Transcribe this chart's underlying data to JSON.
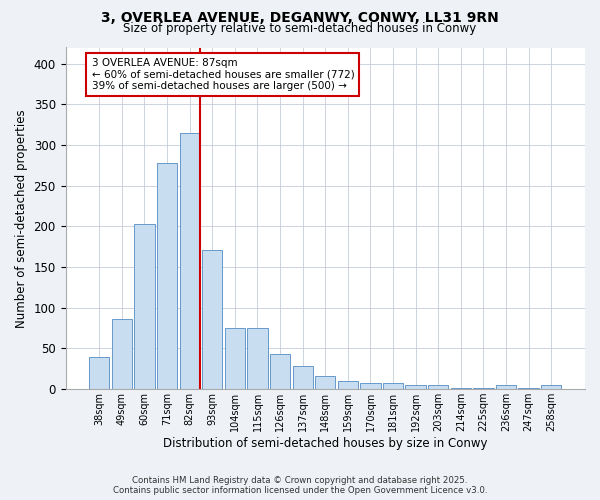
{
  "title_line1": "3, OVERLEA AVENUE, DEGANWY, CONWY, LL31 9RN",
  "title_line2": "Size of property relative to semi-detached houses in Conwy",
  "xlabel": "Distribution of semi-detached houses by size in Conwy",
  "ylabel": "Number of semi-detached properties",
  "bins": [
    "38sqm",
    "49sqm",
    "60sqm",
    "71sqm",
    "82sqm",
    "93sqm",
    "104sqm",
    "115sqm",
    "126sqm",
    "137sqm",
    "148sqm",
    "159sqm",
    "170sqm",
    "181sqm",
    "192sqm",
    "203sqm",
    "214sqm",
    "225sqm",
    "236sqm",
    "247sqm",
    "258sqm"
  ],
  "values": [
    40,
    86,
    203,
    278,
    315,
    171,
    75,
    75,
    43,
    29,
    16,
    10,
    7,
    7,
    5,
    5,
    1,
    1,
    5,
    2,
    5
  ],
  "bar_color": "#c8ddf0",
  "bar_edge_color": "#6699cc",
  "vline_color": "#cc0000",
  "annotation_text": "3 OVERLEA AVENUE: 87sqm\n← 60% of semi-detached houses are smaller (772)\n39% of semi-detached houses are larger (500) →",
  "annotation_box_facecolor": "#ffffff",
  "annotation_box_edgecolor": "#cc0000",
  "footer_line1": "Contains HM Land Registry data © Crown copyright and database right 2025.",
  "footer_line2": "Contains public sector information licensed under the Open Government Licence v3.0.",
  "background_color": "#eef2f7",
  "plot_bg_color": "#ffffff",
  "ylim": [
    0,
    420
  ],
  "yticks": [
    0,
    50,
    100,
    150,
    200,
    250,
    300,
    350,
    400
  ],
  "figsize": [
    6.0,
    5.0
  ],
  "dpi": 100
}
